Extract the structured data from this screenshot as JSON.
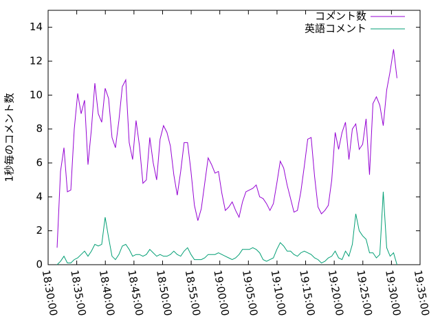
{
  "chart_data": {
    "type": "line",
    "y_label": "1秒毎のコメント数",
    "x": [
      "18:31:34",
      "18:32:10",
      "18:32:46",
      "18:33:22",
      "18:33:58",
      "18:34:34",
      "18:35:10",
      "18:35:46",
      "18:36:22",
      "18:36:58",
      "18:37:34",
      "18:38:10",
      "18:38:46",
      "18:39:22",
      "18:39:58",
      "18:40:34",
      "18:41:10",
      "18:41:46",
      "18:42:22",
      "18:42:58",
      "18:43:34",
      "18:44:10",
      "18:44:46",
      "18:45:22",
      "18:45:58",
      "18:46:34",
      "18:47:10",
      "18:47:46",
      "18:48:22",
      "18:48:58",
      "18:49:34",
      "18:50:10",
      "18:50:46",
      "18:51:22",
      "18:51:58",
      "18:52:34",
      "18:53:10",
      "18:53:46",
      "18:54:22",
      "18:54:58",
      "18:55:34",
      "18:56:10",
      "18:56:46",
      "18:57:22",
      "18:57:58",
      "18:58:34",
      "18:59:10",
      "18:59:46",
      "19:00:22",
      "19:00:58",
      "19:01:34",
      "19:02:10",
      "19:02:46",
      "19:03:22",
      "19:03:58",
      "19:04:34",
      "19:05:10",
      "19:05:46",
      "19:06:22",
      "19:06:58",
      "19:07:34",
      "19:08:10",
      "19:08:46",
      "19:09:22",
      "19:09:58",
      "19:10:34",
      "19:11:10",
      "19:11:46",
      "19:12:22",
      "19:12:58",
      "19:13:34",
      "19:14:10",
      "19:14:46",
      "19:15:22",
      "19:15:58",
      "19:16:34",
      "19:17:10",
      "19:17:46",
      "19:18:22",
      "19:18:58",
      "19:19:34",
      "19:20:10",
      "19:20:46",
      "19:21:22",
      "19:21:58",
      "19:22:34",
      "19:23:10",
      "19:23:46",
      "19:24:22",
      "19:24:58",
      "19:25:34",
      "19:26:10",
      "19:26:46",
      "19:27:22",
      "19:27:58",
      "19:28:34",
      "19:29:10",
      "19:29:46",
      "19:30:22",
      "19:30:58"
    ],
    "series": [
      {
        "name": "コメント数",
        "color": "#9400d3",
        "values": [
          1.0,
          5.5,
          6.9,
          4.3,
          4.4,
          8.0,
          10.1,
          8.9,
          9.7,
          5.9,
          8.0,
          10.7,
          8.9,
          8.4,
          10.4,
          9.8,
          7.5,
          6.9,
          8.5,
          10.5,
          10.9,
          7.2,
          6.2,
          8.5,
          7.0,
          4.8,
          5.0,
          7.5,
          6.0,
          5.0,
          7.4,
          8.2,
          7.8,
          7.0,
          5.3,
          4.1,
          5.5,
          7.2,
          7.2,
          5.5,
          3.5,
          2.6,
          3.3,
          4.8,
          6.3,
          5.9,
          5.4,
          5.5,
          4.2,
          3.2,
          3.4,
          3.7,
          3.2,
          2.8,
          3.7,
          4.3,
          4.4,
          4.5,
          4.7,
          4.0,
          3.9,
          3.6,
          3.2,
          3.6,
          4.8,
          6.1,
          5.7,
          4.7,
          3.9,
          3.1,
          3.2,
          4.3,
          5.8,
          7.4,
          7.5,
          5.2,
          3.4,
          3.0,
          3.2,
          3.5,
          5.0,
          7.8,
          6.8,
          7.8,
          8.4,
          6.2,
          8.0,
          8.3,
          6.8,
          7.1,
          8.6,
          5.3,
          9.5,
          9.9,
          9.4,
          8.2,
          10.3,
          11.4,
          12.7,
          11.0
        ]
      },
      {
        "name": "英語コメント",
        "color": "#009e73",
        "values": [
          0.0,
          0.2,
          0.5,
          0.1,
          0.1,
          0.3,
          0.4,
          0.6,
          0.8,
          0.5,
          0.8,
          1.2,
          1.1,
          1.2,
          2.8,
          1.6,
          0.5,
          0.3,
          0.6,
          1.1,
          1.2,
          0.9,
          0.5,
          0.6,
          0.6,
          0.5,
          0.6,
          0.9,
          0.7,
          0.5,
          0.6,
          0.5,
          0.5,
          0.6,
          0.8,
          0.6,
          0.5,
          0.8,
          1.0,
          0.6,
          0.3,
          0.3,
          0.3,
          0.4,
          0.6,
          0.6,
          0.6,
          0.7,
          0.6,
          0.5,
          0.4,
          0.3,
          0.4,
          0.6,
          0.9,
          0.9,
          0.9,
          1.0,
          0.9,
          0.7,
          0.3,
          0.2,
          0.3,
          0.4,
          0.9,
          1.3,
          1.1,
          0.8,
          0.8,
          0.6,
          0.5,
          0.7,
          0.8,
          0.7,
          0.6,
          0.4,
          0.3,
          0.1,
          0.2,
          0.4,
          0.5,
          0.8,
          0.4,
          0.3,
          0.8,
          0.5,
          1.2,
          3.0,
          2.0,
          1.7,
          1.5,
          0.7,
          0.7,
          0.4,
          0.6,
          4.3,
          1.0,
          0.5,
          0.7,
          0.0
        ]
      }
    ],
    "xlim": [
      "18:30:00",
      "19:35:00"
    ],
    "xticks": [
      "18:30:00",
      "18:35:00",
      "18:40:00",
      "18:45:00",
      "18:50:00",
      "18:55:00",
      "19:00:00",
      "19:05:00",
      "19:10:00",
      "19:15:00",
      "19:20:00",
      "19:25:00",
      "19:30:00",
      "19:35:00"
    ],
    "ylim": [
      0,
      15
    ],
    "yticks": [
      0,
      2,
      4,
      6,
      8,
      10,
      12,
      14
    ],
    "grid": false,
    "legend": "top-right"
  }
}
